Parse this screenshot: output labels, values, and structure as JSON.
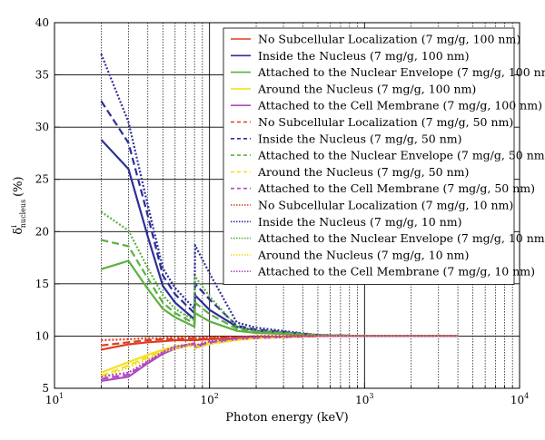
{
  "chart_data": {
    "type": "line",
    "xscale": "log",
    "xlim": [
      10,
      10000
    ],
    "ylim": [
      5,
      40
    ],
    "yticks": [
      5,
      10,
      15,
      20,
      25,
      30,
      35,
      40
    ],
    "xticks": [
      {
        "value": 10,
        "base": "10",
        "exp": "1"
      },
      {
        "value": 100,
        "base": "10",
        "exp": "2"
      },
      {
        "value": 1000,
        "base": "10",
        "exp": "3"
      },
      {
        "value": 10000,
        "base": "10",
        "exp": "4"
      }
    ],
    "xlabel": "Photon energy (keV)",
    "ylabel": {
      "symbol": "δ",
      "sup": "i",
      "sub": "nucleus",
      "unit": "(%)"
    },
    "grid": true,
    "legend_position": "top-right",
    "series": [
      {
        "name": "No Subcellular Localization (7 mg/g, 100 nm)",
        "color": "#e03c1e",
        "dash": "solid",
        "x": [
          20,
          30,
          40,
          50,
          60,
          80,
          80.7,
          100,
          150,
          200,
          500,
          1000,
          4000
        ],
        "y": [
          8.7,
          9.2,
          9.4,
          9.5,
          9.6,
          9.6,
          9.6,
          9.7,
          9.8,
          9.9,
          10,
          10,
          10
        ]
      },
      {
        "name": "Inside the Nucleus (7 mg/g, 100 nm)",
        "color": "#2e2e9a",
        "dash": "solid",
        "x": [
          20,
          30,
          40,
          50,
          60,
          80,
          80.7,
          100,
          150,
          200,
          500,
          1000,
          4000
        ],
        "y": [
          28.8,
          26,
          19.5,
          14.8,
          13.2,
          11.6,
          13.9,
          12.5,
          10.9,
          10.5,
          10.1,
          10,
          10
        ]
      },
      {
        "name": "Attached to the Nuclear Envelope (7 mg/g, 100 nm)",
        "color": "#5cb040",
        "dash": "solid",
        "x": [
          20,
          30,
          40,
          50,
          60,
          80,
          80.7,
          100,
          150,
          200,
          500,
          1000,
          4000
        ],
        "y": [
          16.4,
          17.2,
          14.5,
          12.6,
          11.8,
          10.9,
          12.2,
          11.4,
          10.5,
          10.3,
          10.1,
          10,
          10
        ]
      },
      {
        "name": "Around the Nucleus (7 mg/g, 100 nm)",
        "color": "#f5e020",
        "dash": "solid",
        "x": [
          20,
          30,
          40,
          50,
          60,
          80,
          80.7,
          100,
          150,
          200,
          500,
          1000,
          4000
        ],
        "y": [
          6.5,
          7.5,
          8.2,
          8.7,
          9,
          9.3,
          9.1,
          9.4,
          9.7,
          9.8,
          10,
          10,
          10
        ]
      },
      {
        "name": "Attached to the Cell Membrane (7 mg/g, 100 nm)",
        "color": "#b04ac0",
        "dash": "solid",
        "x": [
          20,
          30,
          40,
          50,
          60,
          80,
          80.7,
          100,
          150,
          200,
          500,
          1000,
          4000
        ],
        "y": [
          5.7,
          6.1,
          7.4,
          8.3,
          8.8,
          9.2,
          8.9,
          9.3,
          9.7,
          9.8,
          10,
          10,
          10
        ]
      },
      {
        "name": "No Subcellular Localization (7 mg/g, 50 nm)",
        "color": "#e03c1e",
        "dash": "8,4",
        "x": [
          20,
          30,
          40,
          50,
          60,
          80,
          80.7,
          100,
          150,
          200,
          500,
          1000,
          4000
        ],
        "y": [
          9.1,
          9.4,
          9.6,
          9.7,
          9.7,
          9.8,
          9.7,
          9.8,
          9.9,
          9.9,
          10,
          10,
          10
        ]
      },
      {
        "name": "Inside the Nucleus (7 mg/g, 50 nm)",
        "color": "#2e2e9a",
        "dash": "8,4",
        "x": [
          20,
          30,
          40,
          50,
          60,
          80,
          80.7,
          100,
          150,
          200,
          500,
          1000,
          4000
        ],
        "y": [
          32.5,
          28.5,
          21.5,
          15.8,
          14,
          12.2,
          15,
          13.5,
          11,
          10.6,
          10.1,
          10,
          10
        ]
      },
      {
        "name": "Attached to the Nuclear Envelope (7 mg/g, 50 nm)",
        "color": "#5cb040",
        "dash": "8,4",
        "x": [
          20,
          30,
          40,
          50,
          60,
          80,
          80.7,
          100,
          150,
          200,
          500,
          1000,
          4000
        ],
        "y": [
          19.2,
          18.6,
          15.5,
          13.2,
          12.2,
          11.2,
          13.2,
          12.1,
          10.7,
          10.4,
          10.1,
          10,
          10
        ]
      },
      {
        "name": "Around the Nucleus (7 mg/g, 50 nm)",
        "color": "#f5e020",
        "dash": "8,4",
        "x": [
          20,
          30,
          40,
          50,
          60,
          80,
          80.7,
          100,
          150,
          200,
          500,
          1000,
          4000
        ],
        "y": [
          6.2,
          7.2,
          8,
          8.6,
          8.9,
          9.2,
          9,
          9.3,
          9.6,
          9.8,
          10,
          10,
          10
        ]
      },
      {
        "name": "Attached to the Cell Membrane (7 mg/g, 50 nm)",
        "color": "#b04ac0",
        "dash": "8,4",
        "x": [
          20,
          30,
          40,
          50,
          60,
          80,
          80.7,
          100,
          150,
          200,
          500,
          1000,
          4000
        ],
        "y": [
          5.9,
          6.3,
          7.5,
          8.4,
          8.9,
          9.3,
          9,
          9.4,
          9.7,
          9.8,
          10,
          10,
          10
        ]
      },
      {
        "name": "No Subcellular Localization (7 mg/g, 10 nm)",
        "color": "#e03c1e",
        "dash": "2,2",
        "x": [
          20,
          30,
          40,
          50,
          60,
          80,
          80.7,
          100,
          150,
          200,
          500,
          1000,
          4000
        ],
        "y": [
          9.6,
          9.7,
          9.8,
          9.8,
          9.9,
          9.9,
          9.8,
          9.9,
          9.9,
          10,
          10,
          10,
          10
        ]
      },
      {
        "name": "Inside the Nucleus (7 mg/g, 10 nm)",
        "color": "#2e2e9a",
        "dash": "2,2",
        "x": [
          20,
          30,
          40,
          50,
          60,
          80,
          80.7,
          100,
          150,
          200,
          500,
          1000,
          4000
        ],
        "y": [
          37,
          30.5,
          22.5,
          16.5,
          14.6,
          12.6,
          18.7,
          16,
          11.3,
          10.8,
          10.1,
          10,
          10
        ]
      },
      {
        "name": "Attached to the Nuclear Envelope (7 mg/g, 10 nm)",
        "color": "#5cb040",
        "dash": "2,2",
        "x": [
          20,
          30,
          40,
          50,
          60,
          80,
          80.7,
          100,
          150,
          200,
          500,
          1000,
          4000
        ],
        "y": [
          21.9,
          20.1,
          16.5,
          13.9,
          12.6,
          11.5,
          15.7,
          13.8,
          10.9,
          10.5,
          10.1,
          10,
          10
        ]
      },
      {
        "name": "Around the Nucleus (7 mg/g, 10 nm)",
        "color": "#f5e020",
        "dash": "2,2",
        "x": [
          20,
          30,
          40,
          50,
          60,
          80,
          80.7,
          100,
          150,
          200,
          500,
          1000,
          4000
        ],
        "y": [
          6,
          7,
          7.8,
          8.5,
          8.8,
          9.1,
          8.8,
          9.2,
          9.6,
          9.8,
          10,
          10,
          10
        ]
      },
      {
        "name": "Attached to the Cell Membrane (7 mg/g, 10 nm)",
        "color": "#b04ac0",
        "dash": "2,2",
        "x": [
          20,
          30,
          40,
          50,
          60,
          80,
          80.7,
          100,
          150,
          200,
          500,
          1000,
          4000
        ],
        "y": [
          6.1,
          6.5,
          7.6,
          8.5,
          9,
          9.3,
          9.1,
          9.5,
          9.8,
          9.9,
          10,
          10,
          10
        ]
      }
    ]
  }
}
